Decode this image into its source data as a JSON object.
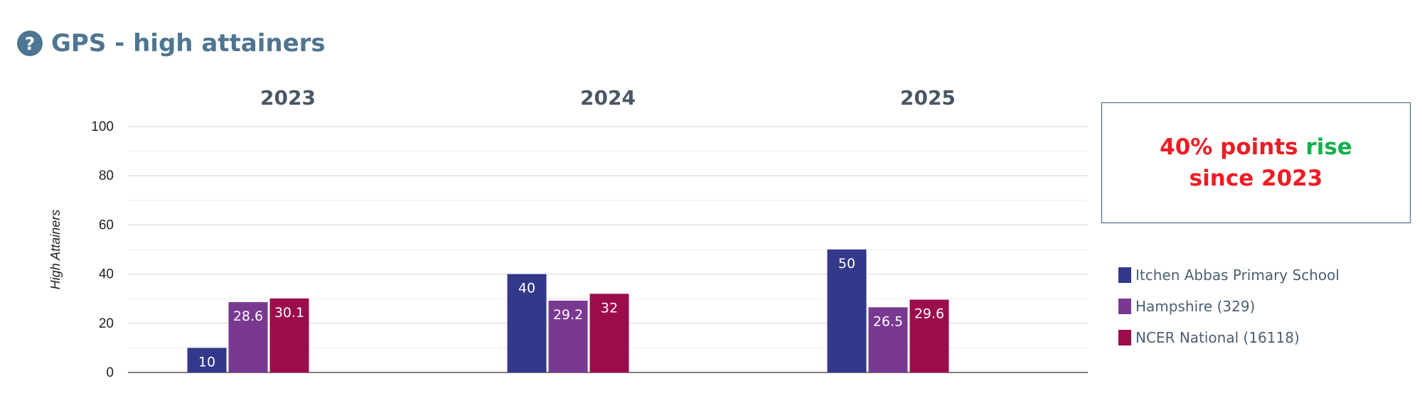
{
  "header": {
    "title": "GPS - high attainers",
    "help_icon": "question-circle-icon"
  },
  "chart_data": {
    "type": "bar",
    "categories": [
      "2023",
      "2024",
      "2025"
    ],
    "ylabel": "High Attainers",
    "ylim": [
      0,
      100
    ],
    "yticks": [
      0,
      20,
      40,
      60,
      80,
      100
    ],
    "grid": true,
    "series": [
      {
        "name": "Itchen Abbas Primary School",
        "color": "#32388a",
        "values": [
          10,
          40,
          50
        ]
      },
      {
        "name": "Hampshire (329)",
        "color": "#7a3991",
        "values": [
          28.6,
          29.2,
          26.5
        ]
      },
      {
        "name": "NCER National (16118)",
        "color": "#9c0c4c",
        "values": [
          30.1,
          32,
          29.6
        ]
      }
    ],
    "legend": "right"
  },
  "callout": {
    "part1": "40% points",
    "part2": "rise",
    "part3": "since 2023",
    "color_red": "#ee1c25",
    "color_green": "#12b04b"
  }
}
